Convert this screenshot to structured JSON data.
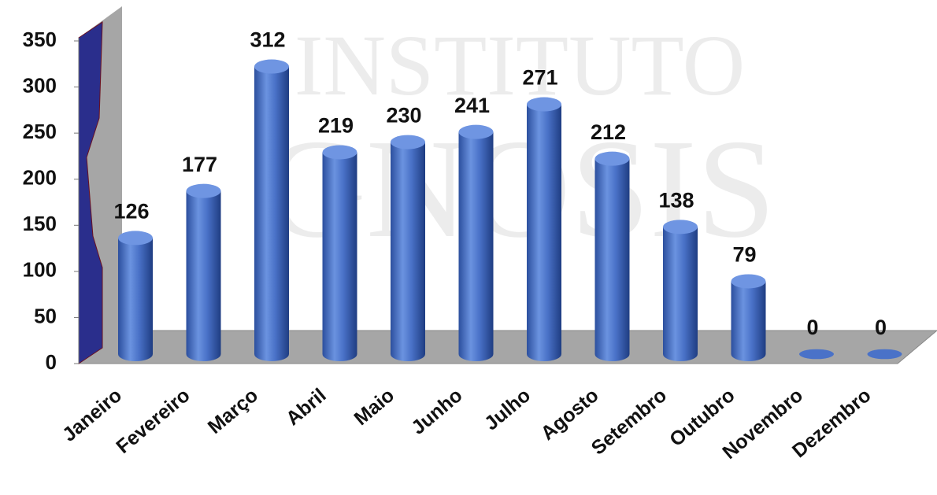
{
  "chart_data": {
    "type": "bar",
    "style": "3d-cylinder",
    "watermark": [
      "INSTITUTO",
      "GNOSIS"
    ],
    "categories": [
      "Janeiro",
      "Fevereiro",
      "Março",
      "Abril",
      "Maio",
      "Junho",
      "Julho",
      "Agosto",
      "Setembro",
      "Outubro",
      "Novembro",
      "Dezembro"
    ],
    "values": [
      126,
      177,
      312,
      219,
      230,
      241,
      271,
      212,
      138,
      79,
      0,
      0
    ],
    "color": "#4a72c8",
    "ylim": [
      0,
      350
    ],
    "yticks": [
      0,
      50,
      100,
      150,
      200,
      250,
      300,
      350
    ]
  }
}
